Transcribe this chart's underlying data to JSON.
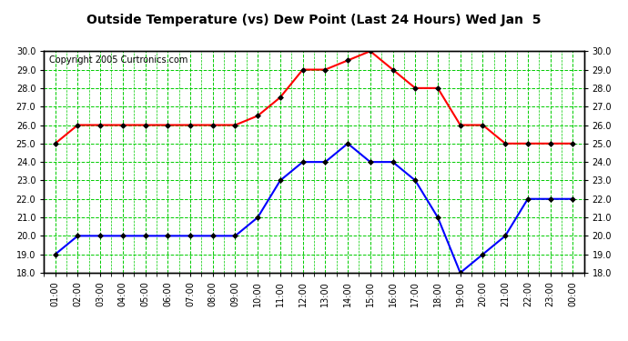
{
  "title": "Outside Temperature (vs) Dew Point (Last 24 Hours) Wed Jan  5",
  "copyright": "Copyright 2005 Curtronics.com",
  "x_labels": [
    "01:00",
    "02:00",
    "03:00",
    "04:00",
    "05:00",
    "06:00",
    "07:00",
    "08:00",
    "09:00",
    "10:00",
    "11:00",
    "12:00",
    "13:00",
    "14:00",
    "15:00",
    "16:00",
    "17:00",
    "18:00",
    "19:00",
    "20:00",
    "21:00",
    "22:00",
    "23:00",
    "00:00"
  ],
  "temp_values": [
    25.0,
    26.0,
    26.0,
    26.0,
    26.0,
    26.0,
    26.0,
    26.0,
    26.0,
    26.5,
    27.5,
    29.0,
    29.0,
    29.5,
    30.0,
    29.0,
    28.0,
    28.0,
    26.0,
    26.0,
    25.0,
    25.0,
    25.0,
    25.0
  ],
  "dew_values": [
    19.0,
    20.0,
    20.0,
    20.0,
    20.0,
    20.0,
    20.0,
    20.0,
    20.0,
    21.0,
    23.0,
    24.0,
    24.0,
    25.0,
    24.0,
    24.0,
    23.0,
    21.0,
    18.0,
    19.0,
    20.0,
    22.0,
    22.0,
    22.0
  ],
  "temp_color": "#ff0000",
  "dew_color": "#0000ff",
  "bg_color": "#ffffff",
  "plot_bg_color": "#ffffff",
  "grid_color": "#00cc00",
  "title_color": "#000000",
  "y_min": 18.0,
  "y_max": 30.0,
  "y_step": 1.0,
  "marker": "D",
  "marker_size": 3,
  "marker_color": "#000000",
  "linewidth": 1.5,
  "title_fontsize": 10,
  "copyright_fontsize": 7,
  "tick_fontsize": 7
}
